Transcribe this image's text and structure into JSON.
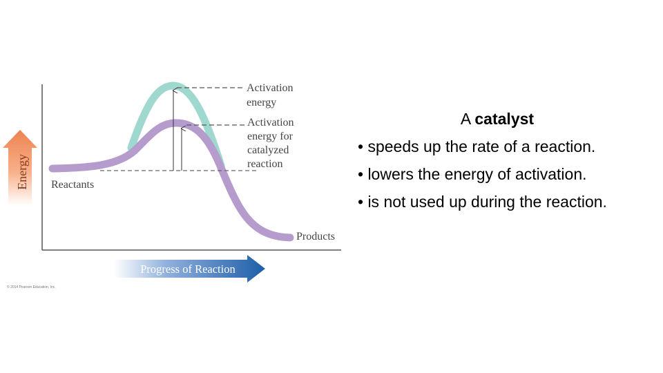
{
  "diagram": {
    "y_axis_label": "Energy",
    "x_axis_label": "Progress of Reaction",
    "labels": {
      "activation_energy": [
        "Activation",
        "energy"
      ],
      "activation_energy_catalyzed": [
        "Activation",
        "energy for",
        "catalyzed",
        "reaction"
      ],
      "reactants": "Reactants",
      "products": "Products"
    },
    "copyright": "© 2014 Pearson Education, Inc.",
    "colors": {
      "uncatalyzed_curve": "#9fd8cf",
      "catalyzed_curve": "#b59ccd",
      "x_arrow": "#1e5ea8",
      "y_arrow": "#ee8350"
    }
  },
  "text": {
    "title_prefix": "A",
    "title_bold": "catalyst",
    "bullets": [
      "• speeds up the rate of a reaction.",
      "• lowers the energy of activation.",
      "• is not used up during the reaction."
    ]
  }
}
